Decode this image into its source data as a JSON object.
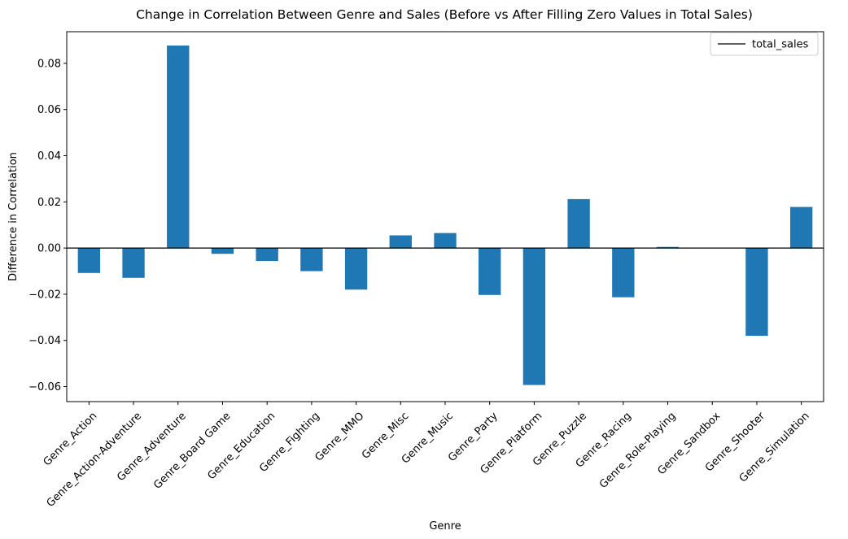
{
  "chart_data": {
    "type": "bar",
    "title": "Change in Correlation Between Genre and Sales (Before vs After Filling Zero Values in Total Sales)",
    "xlabel": "Genre",
    "ylabel": "Difference in Correlation",
    "categories": [
      "Genre_Action",
      "Genre_Action-Adventure",
      "Genre_Adventure",
      "Genre_Board Game",
      "Genre_Education",
      "Genre_Fighting",
      "Genre_MMO",
      "Genre_Misc",
      "Genre_Music",
      "Genre_Party",
      "Genre_Platform",
      "Genre_Puzzle",
      "Genre_Racing",
      "Genre_Role-Playing",
      "Genre_Sandbox",
      "Genre_Shooter",
      "Genre_Simulation"
    ],
    "series": [
      {
        "values": [
          -0.0108,
          -0.0129,
          0.0877,
          -0.0025,
          -0.0056,
          -0.01,
          -0.018,
          0.0055,
          0.0065,
          -0.0203,
          -0.0593,
          0.0212,
          -0.0213,
          0.0005,
          0.0,
          -0.038,
          0.0178
        ],
        "color": "#1f77b4"
      }
    ],
    "ylim": [
      -0.0665,
      0.0937
    ],
    "yticks": [
      -0.06,
      -0.04,
      -0.02,
      0.0,
      0.02,
      0.04,
      0.06,
      0.08
    ],
    "ytick_labels": [
      "−0.06",
      "−0.04",
      "−0.02",
      "0.00",
      "0.02",
      "0.04",
      "0.06",
      "0.08"
    ],
    "hline": {
      "y": 0,
      "color": "#000000"
    },
    "legend": {
      "position": "top-right",
      "entries": [
        {
          "label": "total_sales",
          "style": "line",
          "color": "#000000"
        }
      ]
    },
    "grid": false,
    "xtick_rotation": 45
  }
}
